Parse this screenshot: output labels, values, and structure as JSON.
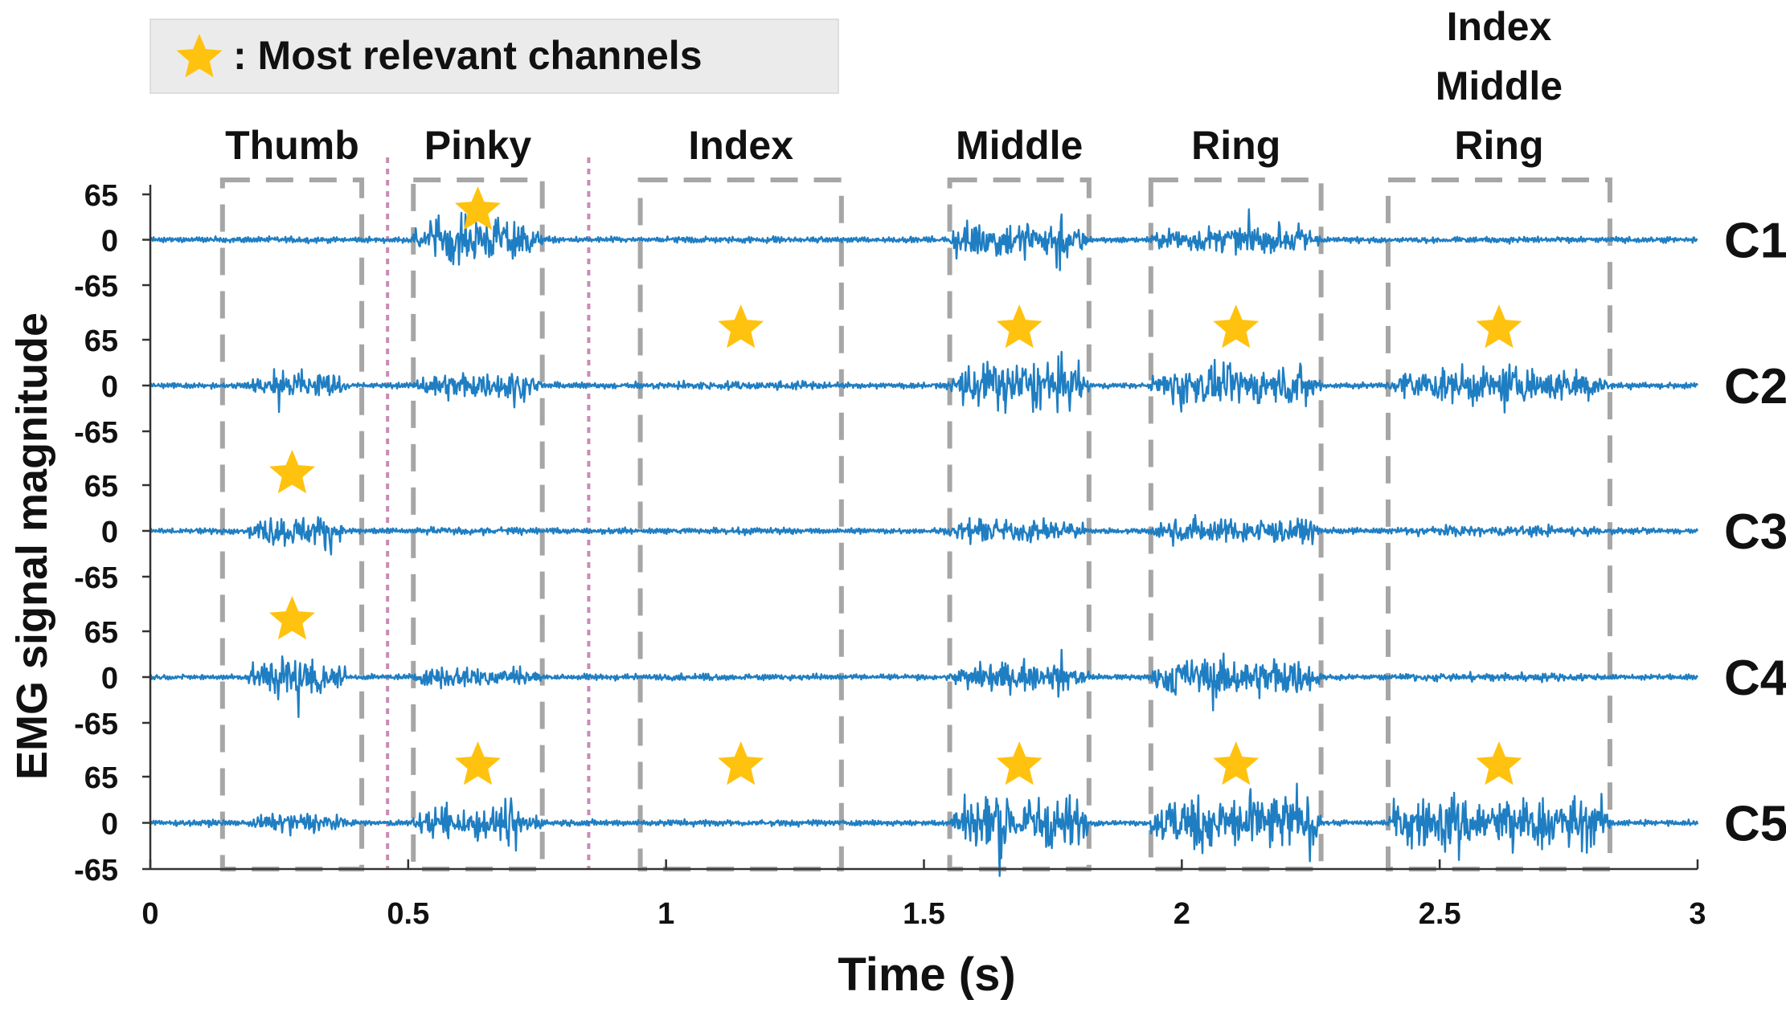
{
  "legend": {
    "text": ": Most relevant channels",
    "star_color": "#FFC20E",
    "box_color": "#EBEBEB"
  },
  "chart_data": {
    "type": "line",
    "xlabel": "Time (s)",
    "ylabel": "EMG signal magnitude",
    "xlim": [
      0,
      3
    ],
    "x_ticks": [
      "0",
      "0.5",
      "1",
      "1.5",
      "2",
      "2.5",
      "3"
    ],
    "y_ticks": [
      "65",
      "0",
      "-65"
    ],
    "ylim_per_channel": [
      -65,
      65
    ],
    "line_color": "#1F7EC2",
    "channels": [
      "C1",
      "C2",
      "C3",
      "C4",
      "C5"
    ],
    "segments": [
      {
        "label": "Thumb",
        "x0": 0.14,
        "x1": 0.41,
        "relevant": [
          "C3",
          "C4"
        ]
      },
      {
        "label": "Pinky",
        "x0": 0.51,
        "x1": 0.76,
        "relevant": [
          "C1",
          "C5"
        ]
      },
      {
        "label": "Index",
        "x0": 0.95,
        "x1": 1.34,
        "relevant": [
          "C2",
          "C5"
        ]
      },
      {
        "label": "Middle",
        "x0": 1.55,
        "x1": 1.82,
        "relevant": [
          "C2",
          "C5"
        ]
      },
      {
        "label": "Ring",
        "x0": 1.94,
        "x1": 2.27,
        "relevant": [
          "C2",
          "C5"
        ]
      },
      {
        "label": "Index\nMiddle\nRing",
        "x0": 2.4,
        "x1": 2.83,
        "relevant": [
          "C2",
          "C5"
        ]
      }
    ],
    "separators_x": [
      0.46,
      0.85
    ],
    "separator_color": "#C98BB5",
    "box_color": "#A6A6A6",
    "activity_amplitude": {
      "C1": [
        0.1,
        0.9,
        0.1,
        0.8,
        0.55,
        0.1,
        0.45
      ],
      "C2": [
        0.6,
        0.55,
        0.15,
        1.1,
        0.8,
        0.7,
        0.85
      ],
      "C3": [
        0.65,
        0.15,
        0.1,
        0.45,
        0.5,
        0.2,
        0.4
      ],
      "C4": [
        0.95,
        0.45,
        0.1,
        0.55,
        0.8,
        0.15,
        0.45
      ],
      "C5": [
        0.4,
        0.7,
        0.1,
        1.15,
        1.2,
        1.1,
        1.3
      ]
    }
  }
}
